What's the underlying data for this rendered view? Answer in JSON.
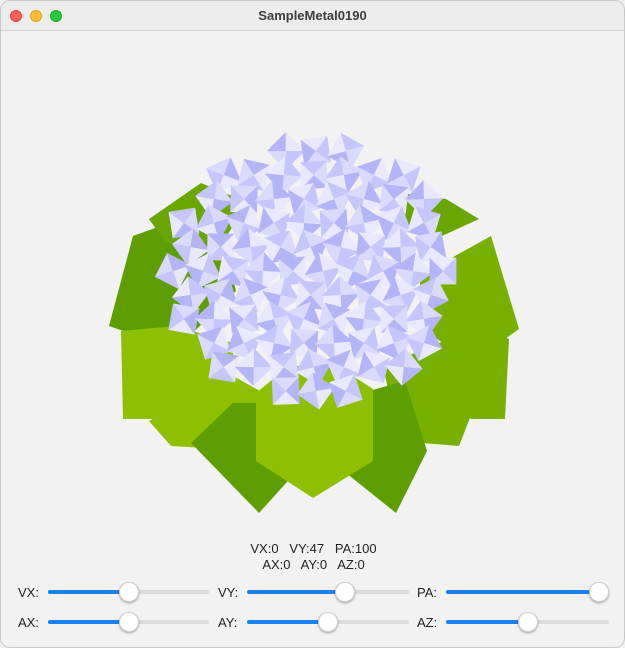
{
  "window": {
    "title": "SampleMetal0190"
  },
  "colors": {
    "accent": "#1a82f0",
    "petal": "#c8c8ff",
    "leaf_light": "#8cc000",
    "leaf_dark": "#5f9e00"
  },
  "readout": {
    "line1": "VX:0   VY:47   PA:100",
    "line2": "AX:0   AY:0   AZ:0"
  },
  "controls": [
    {
      "label": "VX:",
      "fraction": 0.5
    },
    {
      "label": "VY:",
      "fraction": 0.62
    },
    {
      "label": "PA:",
      "fraction": 1.0
    },
    {
      "label": "AX:",
      "fraction": 0.5
    },
    {
      "label": "AY:",
      "fraction": 0.5
    },
    {
      "label": "AZ:",
      "fraction": 0.5
    }
  ]
}
